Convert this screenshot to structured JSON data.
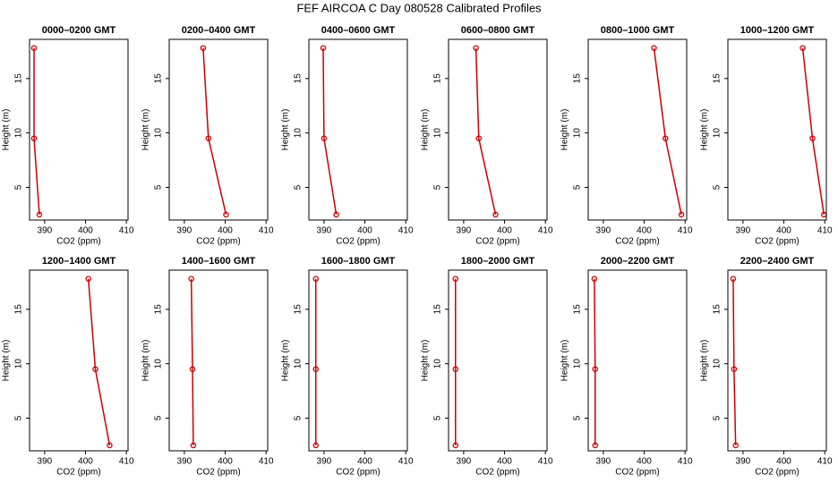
{
  "title": "FEF AIRCOA C  Day 080528  Calibrated Profiles",
  "chart_data": [
    {
      "type": "line",
      "title": "0000–0200 GMT",
      "xlabel": "CO2 (ppm)",
      "ylabel": "Height (m)",
      "xlim": [
        386.3,
        410.4
      ],
      "ylim": [
        2.0,
        18.6
      ],
      "xticks": [
        390,
        400,
        410
      ],
      "yticks": [
        5,
        10,
        15
      ],
      "series": [
        {
          "color": "#cc0000",
          "x": [
            387.4,
            387.4,
            388.7
          ],
          "values": [
            17.8,
            9.5,
            2.5
          ]
        }
      ]
    },
    {
      "type": "line",
      "title": "0200–0400 GMT",
      "xlabel": "CO2 (ppm)",
      "ylabel": "Height (m)",
      "xlim": [
        386.3,
        410.4
      ],
      "ylim": [
        2.0,
        18.6
      ],
      "xticks": [
        390,
        400,
        410
      ],
      "yticks": [
        5,
        10,
        15
      ],
      "series": [
        {
          "color": "#cc0000",
          "x": [
            394.6,
            395.9,
            400.2
          ],
          "values": [
            17.8,
            9.5,
            2.5
          ]
        }
      ]
    },
    {
      "type": "line",
      "title": "0400–0600 GMT",
      "xlabel": "CO2 (ppm)",
      "ylabel": "Height (m)",
      "xlim": [
        386.3,
        410.4
      ],
      "ylim": [
        2.0,
        18.6
      ],
      "xticks": [
        390,
        400,
        410
      ],
      "yticks": [
        5,
        10,
        15
      ],
      "series": [
        {
          "color": "#cc0000",
          "x": [
            389.8,
            390.0,
            393.0
          ],
          "values": [
            17.8,
            9.5,
            2.5
          ]
        }
      ]
    },
    {
      "type": "line",
      "title": "0600–0800 GMT",
      "xlabel": "CO2 (ppm)",
      "ylabel": "Height (m)",
      "xlim": [
        386.3,
        410.4
      ],
      "ylim": [
        2.0,
        18.6
      ],
      "xticks": [
        390,
        400,
        410
      ],
      "yticks": [
        5,
        10,
        15
      ],
      "series": [
        {
          "color": "#cc0000",
          "x": [
            393.0,
            393.7,
            397.8
          ],
          "values": [
            17.8,
            9.5,
            2.5
          ]
        }
      ]
    },
    {
      "type": "line",
      "title": "0800–1000 GMT",
      "xlabel": "CO2 (ppm)",
      "ylabel": "Height (m)",
      "xlim": [
        386.3,
        410.4
      ],
      "ylim": [
        2.0,
        18.6
      ],
      "xticks": [
        390,
        400,
        410
      ],
      "yticks": [
        5,
        10,
        15
      ],
      "series": [
        {
          "color": "#cc0000",
          "x": [
            402.4,
            405.2,
            409.1
          ],
          "values": [
            17.8,
            9.5,
            2.5
          ]
        }
      ]
    },
    {
      "type": "line",
      "title": "1000–1200 GMT",
      "xlabel": "CO2 (ppm)",
      "ylabel": "Height (m)",
      "xlim": [
        386.3,
        410.4
      ],
      "ylim": [
        2.0,
        18.6
      ],
      "xticks": [
        390,
        400,
        410
      ],
      "yticks": [
        5,
        10,
        15
      ],
      "series": [
        {
          "color": "#cc0000",
          "x": [
            404.6,
            407.0,
            409.8
          ],
          "values": [
            17.8,
            9.5,
            2.5
          ]
        }
      ]
    },
    {
      "type": "line",
      "title": "1200–1400 GMT",
      "xlabel": "CO2 (ppm)",
      "ylabel": "Height (m)",
      "xlim": [
        386.3,
        410.4
      ],
      "ylim": [
        2.0,
        18.6
      ],
      "xticks": [
        390,
        400,
        410
      ],
      "yticks": [
        5,
        10,
        15
      ],
      "series": [
        {
          "color": "#cc0000",
          "x": [
            400.7,
            402.4,
            405.9
          ],
          "values": [
            17.8,
            9.5,
            2.5
          ]
        }
      ]
    },
    {
      "type": "line",
      "title": "1400–1600 GMT",
      "xlabel": "CO2 (ppm)",
      "ylabel": "Height (m)",
      "xlim": [
        386.3,
        410.4
      ],
      "ylim": [
        2.0,
        18.6
      ],
      "xticks": [
        390,
        400,
        410
      ],
      "yticks": [
        5,
        10,
        15
      ],
      "series": [
        {
          "color": "#cc0000",
          "x": [
            391.7,
            392.0,
            392.2
          ],
          "values": [
            17.8,
            9.5,
            2.5
          ]
        }
      ]
    },
    {
      "type": "line",
      "title": "1600–1800 GMT",
      "xlabel": "CO2 (ppm)",
      "ylabel": "Height (m)",
      "xlim": [
        386.3,
        410.4
      ],
      "ylim": [
        2.0,
        18.6
      ],
      "xticks": [
        390,
        400,
        410
      ],
      "yticks": [
        5,
        10,
        15
      ],
      "series": [
        {
          "color": "#cc0000",
          "x": [
            388.0,
            388.0,
            388.0
          ],
          "values": [
            17.8,
            9.5,
            2.5
          ]
        }
      ]
    },
    {
      "type": "line",
      "title": "1800–2000 GMT",
      "xlabel": "CO2 (ppm)",
      "ylabel": "Height (m)",
      "xlim": [
        386.3,
        410.4
      ],
      "ylim": [
        2.0,
        18.6
      ],
      "xticks": [
        390,
        400,
        410
      ],
      "yticks": [
        5,
        10,
        15
      ],
      "series": [
        {
          "color": "#cc0000",
          "x": [
            388.0,
            388.0,
            388.0
          ],
          "values": [
            17.8,
            9.5,
            2.5
          ]
        }
      ]
    },
    {
      "type": "line",
      "title": "2000–2200 GMT",
      "xlabel": "CO2 (ppm)",
      "ylabel": "Height (m)",
      "xlim": [
        386.3,
        410.4
      ],
      "ylim": [
        2.0,
        18.6
      ],
      "xticks": [
        390,
        400,
        410
      ],
      "yticks": [
        5,
        10,
        15
      ],
      "series": [
        {
          "color": "#cc0000",
          "x": [
            387.8,
            388.0,
            388.0
          ],
          "values": [
            17.8,
            9.5,
            2.5
          ]
        }
      ]
    },
    {
      "type": "line",
      "title": "2200–2400 GMT",
      "xlabel": "CO2 (ppm)",
      "ylabel": "Height (m)",
      "xlim": [
        386.3,
        410.4
      ],
      "ylim": [
        2.0,
        18.6
      ],
      "xticks": [
        390,
        400,
        410
      ],
      "yticks": [
        5,
        10,
        15
      ],
      "series": [
        {
          "color": "#cc0000",
          "x": [
            387.6,
            387.8,
            388.2
          ],
          "values": [
            17.8,
            9.5,
            2.5
          ]
        }
      ]
    }
  ]
}
